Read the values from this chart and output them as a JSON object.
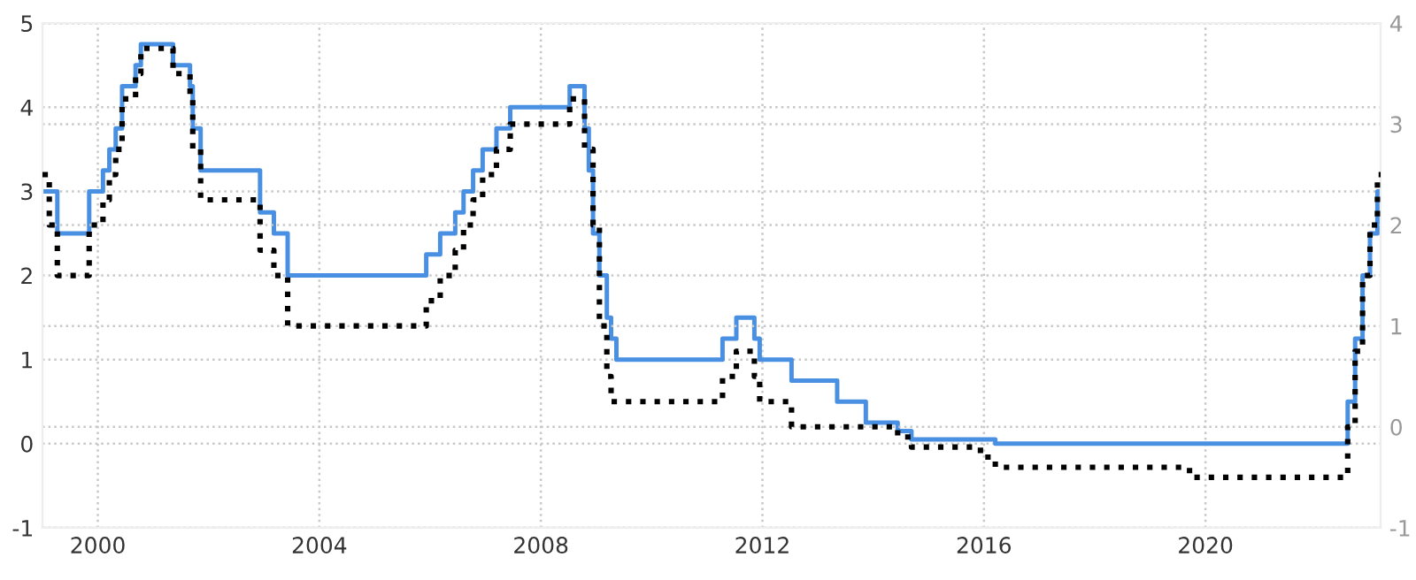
{
  "chart_data": {
    "type": "step",
    "xlim": [
      "1999-01-01",
      "2023-03-01"
    ],
    "xticks": [
      {
        "value": "2000-01-01",
        "label": "2000"
      },
      {
        "value": "2004-01-01",
        "label": "2004"
      },
      {
        "value": "2008-01-01",
        "label": "2008"
      },
      {
        "value": "2012-01-01",
        "label": "2012"
      },
      {
        "value": "2016-01-01",
        "label": "2016"
      },
      {
        "value": "2020-01-01",
        "label": "2020"
      }
    ],
    "ylim": [
      -1,
      5
    ],
    "yticks": [
      -1,
      0,
      1,
      2,
      3,
      4,
      5
    ],
    "y2lim": [
      -1,
      4
    ],
    "y2ticks": [
      -1,
      0,
      1,
      2,
      3,
      4
    ],
    "grid": true,
    "marker": "none",
    "series": [
      {
        "color": "#4a90e2",
        "line_style": "solid",
        "x": [
          "1999-01-01",
          "1999-04-09",
          "1999-11-05",
          "2000-02-04",
          "2000-03-17",
          "2000-04-28",
          "2000-06-09",
          "2000-09-06",
          "2000-10-11",
          "2001-05-11",
          "2001-08-31",
          "2001-09-18",
          "2001-11-09",
          "2002-12-06",
          "2003-03-07",
          "2003-06-06",
          "2005-12-06",
          "2006-03-08",
          "2006-06-15",
          "2006-08-09",
          "2006-10-11",
          "2006-12-13",
          "2007-03-14",
          "2007-06-13",
          "2008-07-09",
          "2008-10-15",
          "2008-11-12",
          "2008-12-10",
          "2009-01-21",
          "2009-03-11",
          "2009-04-08",
          "2009-05-13",
          "2011-04-13",
          "2011-07-13",
          "2011-11-09",
          "2011-12-14",
          "2012-07-11",
          "2013-05-08",
          "2013-11-13",
          "2014-06-11",
          "2014-09-10",
          "2016-03-16",
          "2022-07-27",
          "2022-09-14",
          "2022-11-02",
          "2022-12-21",
          "2023-02-08",
          "2023-03-01"
        ],
        "values": [
          3.0,
          2.5,
          3.0,
          3.25,
          3.5,
          3.75,
          4.25,
          4.5,
          4.75,
          4.5,
          4.25,
          3.75,
          3.25,
          2.75,
          2.5,
          2.0,
          2.25,
          2.5,
          2.75,
          3.0,
          3.25,
          3.5,
          3.75,
          4.0,
          4.25,
          3.75,
          3.25,
          2.5,
          2.0,
          1.5,
          1.25,
          1.0,
          1.25,
          1.5,
          1.25,
          1.0,
          0.75,
          0.5,
          0.25,
          0.15,
          0.05,
          0.0,
          0.5,
          1.25,
          2.0,
          2.5,
          3.0,
          3.0
        ]
      },
      {
        "color": "#000000",
        "line_style": "dotted",
        "axis": "y2",
        "x": [
          "1999-01-01",
          "1999-02-15",
          "1999-04-09",
          "1999-11-05",
          "2000-02-04",
          "2000-03-17",
          "2000-04-28",
          "2000-06-09",
          "2000-09-06",
          "2000-10-11",
          "2001-05-11",
          "2001-08-31",
          "2001-09-18",
          "2001-11-09",
          "2002-12-06",
          "2003-03-07",
          "2003-06-06",
          "2005-12-06",
          "2006-03-08",
          "2006-06-15",
          "2006-08-09",
          "2006-10-11",
          "2006-12-13",
          "2007-03-14",
          "2007-06-13",
          "2008-07-09",
          "2008-10-15",
          "2008-12-10",
          "2009-01-21",
          "2009-03-11",
          "2009-04-08",
          "2011-04-13",
          "2011-07-13",
          "2011-11-09",
          "2011-12-14",
          "2012-07-11",
          "2014-06-11",
          "2014-09-10",
          "2015-12-09",
          "2016-03-16",
          "2019-09-18",
          "2022-07-27",
          "2022-09-14",
          "2022-11-02",
          "2022-12-21",
          "2023-02-08",
          "2023-03-01"
        ],
        "values": [
          2.5,
          2.0,
          1.5,
          2.0,
          2.25,
          2.5,
          2.75,
          3.25,
          3.5,
          3.75,
          3.5,
          3.25,
          2.75,
          2.25,
          1.75,
          1.5,
          1.0,
          1.25,
          1.5,
          1.75,
          2.0,
          2.25,
          2.5,
          2.75,
          3.0,
          3.25,
          2.75,
          2.0,
          1.0,
          0.5,
          0.25,
          0.5,
          0.75,
          0.5,
          0.25,
          0.0,
          -0.1,
          -0.2,
          -0.3,
          -0.4,
          -0.5,
          0.0,
          0.75,
          1.5,
          2.0,
          2.5,
          2.5
        ]
      }
    ]
  }
}
